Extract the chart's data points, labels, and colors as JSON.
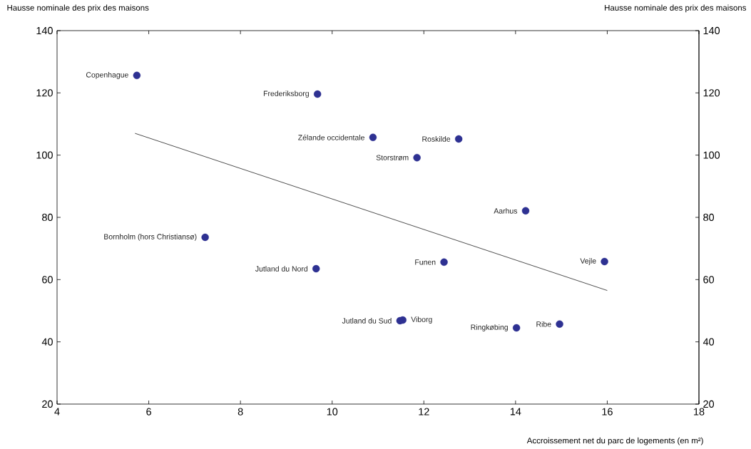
{
  "chart_data": {
    "type": "scatter",
    "xlabel": "Accroissement net du parc de logements (en m²)",
    "ylabel": "Hausse nominale des prix des maisons",
    "y2label": "Hausse nominale des prix des maisons",
    "xlim": [
      4,
      18
    ],
    "xticks": [
      4,
      6,
      8,
      10,
      12,
      14,
      16,
      18
    ],
    "ylim": [
      20,
      140
    ],
    "yticks": [
      20,
      40,
      60,
      80,
      100,
      120,
      140
    ],
    "y2lim": [
      20,
      140
    ],
    "y2ticks": [
      20,
      40,
      60,
      80,
      100,
      120,
      140
    ],
    "grid": false,
    "series": [
      {
        "name": "Copenhague",
        "color": "#2e3192",
        "x": [
          5.74
        ],
        "values": [
          125.6
        ]
      },
      {
        "name": "Frederiksborg",
        "color": "#2e3192",
        "x": [
          9.68
        ],
        "values": [
          119.6
        ]
      },
      {
        "name": "Zélande occidentale",
        "color": "#2e3192",
        "x": [
          10.89
        ],
        "values": [
          105.7
        ]
      },
      {
        "name": "Roskilde",
        "color": "#2e3192",
        "x": [
          12.76
        ],
        "values": [
          105.2
        ]
      },
      {
        "name": "Storstrøm",
        "color": "#2e3192",
        "x": [
          11.85
        ],
        "values": [
          99.2
        ]
      },
      {
        "name": "Aarhus",
        "color": "#2e3192",
        "x": [
          14.22
        ],
        "values": [
          82.1
        ]
      },
      {
        "name": "Bornholm (hors Christiansø)",
        "color": "#2e3192",
        "x": [
          7.23
        ],
        "values": [
          73.6
        ]
      },
      {
        "name": "Jutland du Nord",
        "color": "#2e3192",
        "x": [
          9.65
        ],
        "values": [
          63.5
        ]
      },
      {
        "name": "Funen",
        "color": "#2e3192",
        "x": [
          12.44
        ],
        "values": [
          65.6
        ]
      },
      {
        "name": "Vejle",
        "color": "#2e3192",
        "x": [
          15.94
        ],
        "values": [
          65.8
        ]
      },
      {
        "name": "Jutland du Sud",
        "color": "#2e3192",
        "x": [
          11.48
        ],
        "values": [
          46.8
        ]
      },
      {
        "name": "Viborg",
        "color": "#2e3192",
        "x": [
          11.54
        ],
        "values": [
          47.0
        ]
      },
      {
        "name": "Ringkøbing",
        "color": "#2e3192",
        "x": [
          14.02
        ],
        "values": [
          44.5
        ]
      },
      {
        "name": "Ribe",
        "color": "#2e3192",
        "x": [
          14.96
        ],
        "values": [
          45.7
        ]
      },
      {
        "type": "line",
        "color": "#000000",
        "x": [
          5.7,
          16
        ],
        "values": [
          107,
          56.5
        ]
      }
    ]
  }
}
